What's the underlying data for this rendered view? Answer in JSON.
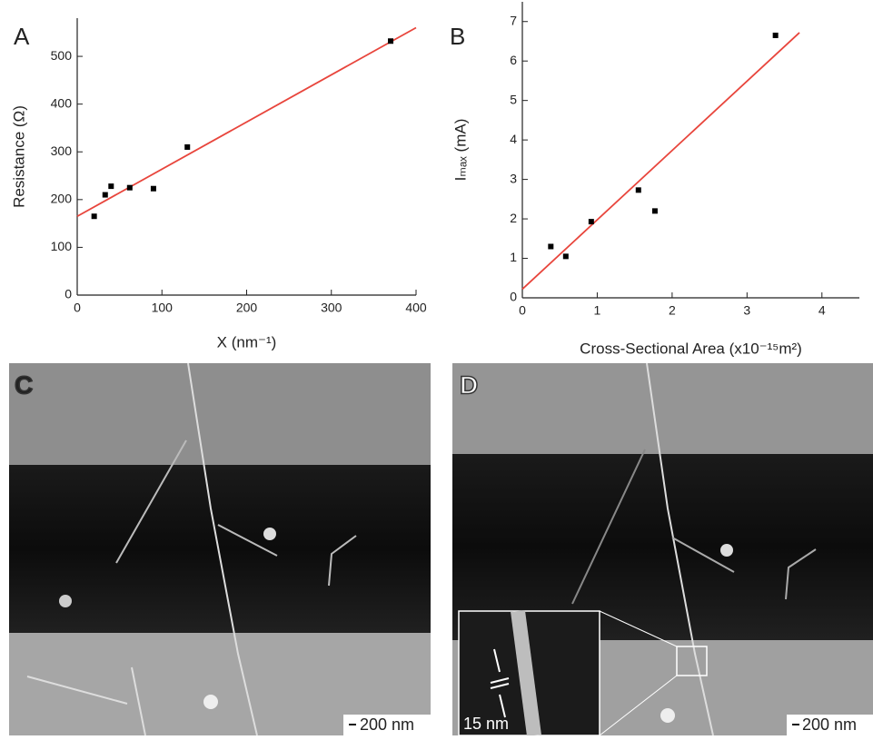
{
  "chart_data": [
    {
      "type": "scatter",
      "panel": "A",
      "xlabel": "X (nm⁻¹)",
      "ylabel": "Resistance (Ω)",
      "x": [
        20,
        33,
        40,
        62,
        90,
        130,
        370
      ],
      "values": [
        165,
        210,
        228,
        225,
        223,
        310,
        532
      ],
      "color": "#000000",
      "fit": {
        "x": [
          0,
          400
        ],
        "values": [
          165,
          560
        ],
        "color": "#e8453c"
      },
      "xlim": [
        0,
        400
      ],
      "ylim": [
        0,
        580
      ],
      "xticks": [
        0,
        100,
        200,
        300,
        400
      ],
      "yticks": [
        0,
        100,
        200,
        300,
        400,
        500
      ]
    },
    {
      "type": "scatter",
      "panel": "B",
      "xlabel": "Cross-Sectional Area (x10⁻¹⁵m²)",
      "ylabel": "Iₘₐₓ (mA)",
      "x": [
        0.38,
        0.58,
        0.92,
        1.55,
        1.77,
        3.38
      ],
      "values": [
        1.3,
        1.05,
        1.93,
        2.73,
        2.2,
        6.65
      ],
      "color": "#000000",
      "fit": {
        "x": [
          0,
          3.7
        ],
        "values": [
          0.22,
          6.72
        ],
        "color": "#e8453c"
      },
      "xlim": [
        0,
        4.5
      ],
      "ylim": [
        0,
        7.5
      ],
      "xticks": [
        0,
        1,
        2,
        3,
        4
      ],
      "yticks": [
        0,
        1,
        2,
        3,
        4,
        5,
        6,
        7
      ]
    }
  ],
  "panels": [
    {
      "label": "C",
      "scale_bar": "200 nm"
    },
    {
      "label": "D",
      "scale_bar": "200 nm",
      "inset_label": "15 nm"
    }
  ]
}
